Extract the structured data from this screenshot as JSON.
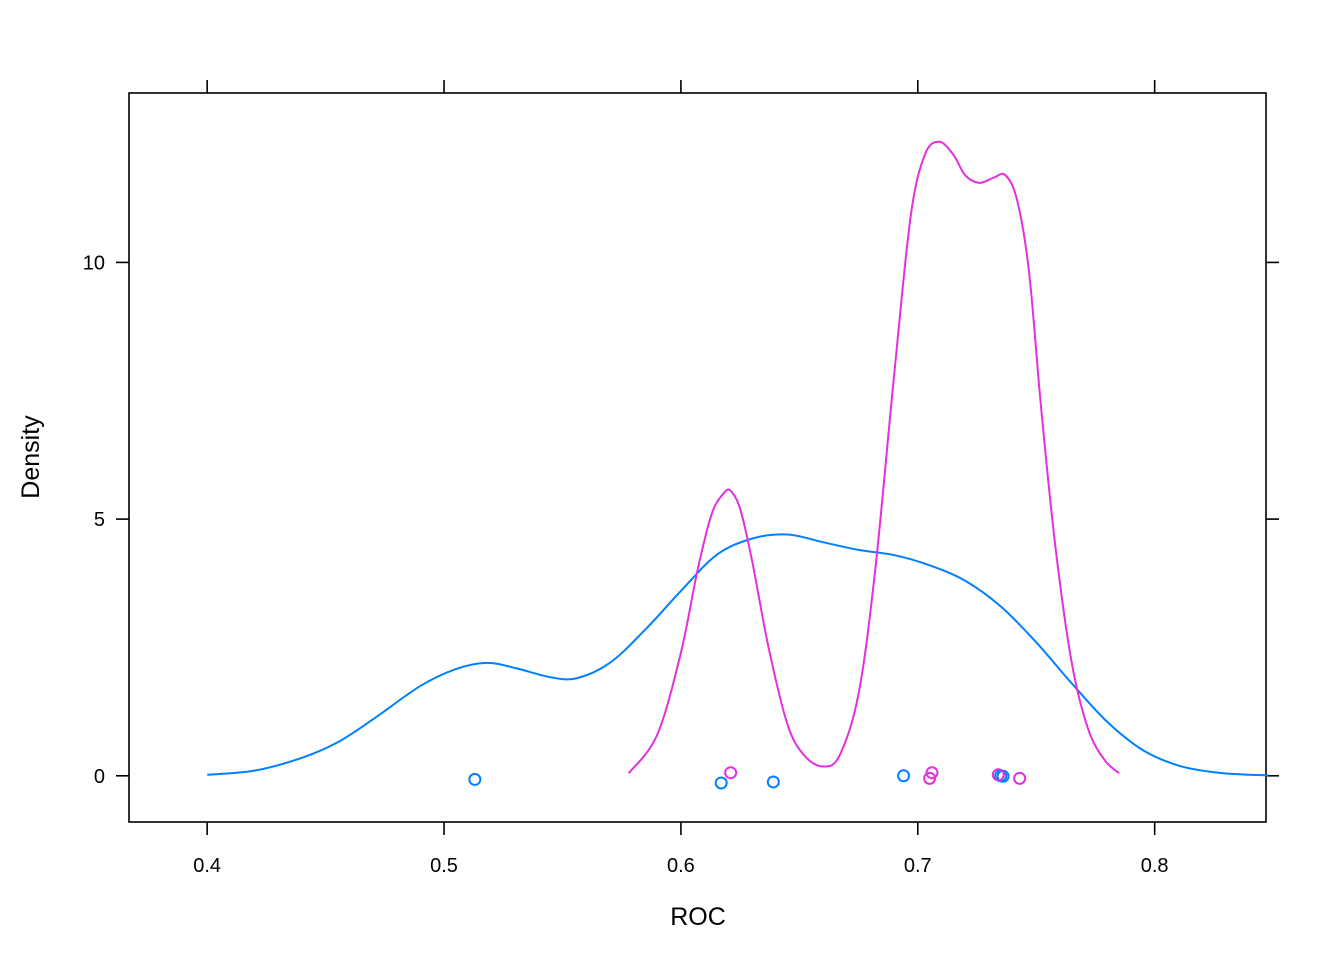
{
  "chart_data": {
    "type": "line",
    "title": "",
    "xlabel": "ROC",
    "ylabel": "Density",
    "xlim": [
      0.367,
      0.847
    ],
    "ylim": [
      -0.9,
      13.3
    ],
    "x_ticks": [
      0.4,
      0.5,
      0.6,
      0.7,
      0.8
    ],
    "x_tick_labels": [
      "0.4",
      "0.5",
      "0.6",
      "0.7",
      "0.8"
    ],
    "y_ticks": [
      0,
      5,
      10
    ],
    "y_tick_labels": [
      "0",
      "5",
      "10"
    ],
    "grid": false,
    "legend": "none",
    "series": [
      {
        "color": "#0080ff",
        "density": {
          "x": [
            0.4,
            0.42,
            0.44,
            0.455,
            0.47,
            0.49,
            0.505,
            0.518,
            0.53,
            0.545,
            0.556,
            0.57,
            0.585,
            0.6,
            0.615,
            0.63,
            0.645,
            0.66,
            0.675,
            0.69,
            0.705,
            0.72,
            0.735,
            0.75,
            0.765,
            0.78,
            0.795,
            0.81,
            0.825,
            0.84,
            0.848
          ],
          "y": [
            0.02,
            0.1,
            0.35,
            0.65,
            1.1,
            1.75,
            2.08,
            2.2,
            2.1,
            1.92,
            1.9,
            2.2,
            2.85,
            3.6,
            4.3,
            4.62,
            4.7,
            4.55,
            4.4,
            4.3,
            4.1,
            3.8,
            3.3,
            2.6,
            1.8,
            1.05,
            0.5,
            0.2,
            0.07,
            0.02,
            0.01
          ]
        },
        "points": {
          "x": [
            0.513,
            0.617,
            0.639,
            0.694,
            0.735,
            0.736
          ],
          "y": [
            -0.07,
            -0.14,
            -0.12,
            0.0,
            0.0,
            -0.01
          ]
        }
      },
      {
        "color": "#e42fe0",
        "density": {
          "x": [
            0.578,
            0.59,
            0.6,
            0.607,
            0.613,
            0.618,
            0.621,
            0.625,
            0.63,
            0.637,
            0.645,
            0.652,
            0.66,
            0.667,
            0.675,
            0.682,
            0.69,
            0.697,
            0.703,
            0.709,
            0.715,
            0.72,
            0.726,
            0.732,
            0.737,
            0.742,
            0.747,
            0.752,
            0.758,
            0.765,
            0.772,
            0.779,
            0.785
          ],
          "y": [
            0.05,
            0.8,
            2.4,
            4.0,
            5.1,
            5.5,
            5.55,
            5.2,
            4.2,
            2.5,
            1.0,
            0.4,
            0.18,
            0.4,
            1.6,
            4.0,
            7.8,
            10.9,
            12.1,
            12.35,
            12.1,
            11.7,
            11.55,
            11.65,
            11.7,
            11.2,
            9.8,
            7.2,
            4.5,
            2.2,
            0.9,
            0.3,
            0.05
          ]
        },
        "points": {
          "x": [
            0.621,
            0.705,
            0.706,
            0.734,
            0.743
          ],
          "y": [
            0.06,
            -0.05,
            0.06,
            0.02,
            -0.05
          ]
        }
      }
    ]
  }
}
